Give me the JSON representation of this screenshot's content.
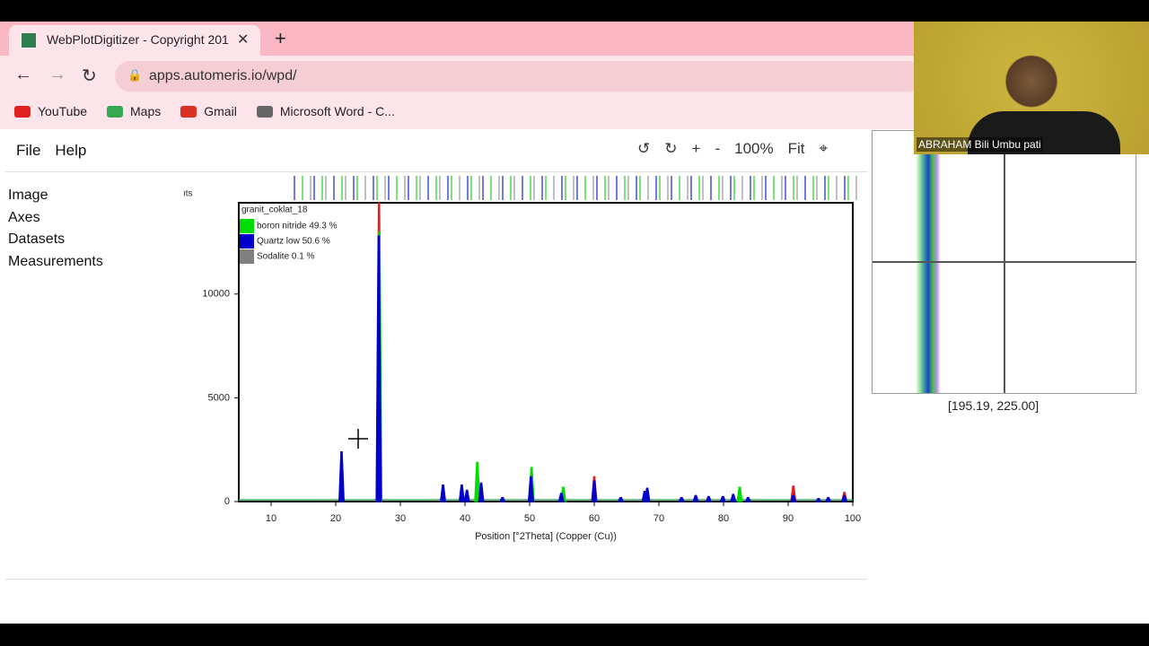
{
  "browser": {
    "tab_title": "WebPlotDigitizer - Copyright 201",
    "url": "apps.automeris.io/wpd/",
    "bookmarks": [
      "YouTube",
      "Maps",
      "Gmail",
      "Microsoft Word - C..."
    ]
  },
  "menu": {
    "items": [
      "File",
      "Help"
    ]
  },
  "toolbar": {
    "buttons": [
      "↺",
      "↻",
      "+",
      "-",
      "100%",
      "Fit",
      "⌖"
    ]
  },
  "sidebar": {
    "items": [
      "Image",
      "Axes",
      "Datasets",
      "Measurements"
    ]
  },
  "plot": {
    "type": "peaks",
    "axis_label_fragment": "ıts",
    "legend_title": "granit_coklat_18",
    "x_label": "Position [°2Theta] (Copper (Cu))",
    "xlim": [
      5,
      100
    ],
    "ylim": [
      0,
      14400
    ],
    "xticks": [
      10,
      20,
      30,
      40,
      50,
      60,
      70,
      80,
      90,
      100
    ],
    "yticks": [
      0,
      5000,
      10000
    ],
    "series": [
      {
        "color": "#e02020",
        "x": [
          26.7,
          60.0,
          90.8,
          98.7
        ],
        "values": [
          14400,
          1200,
          750,
          450
        ]
      },
      {
        "name": "boron nitride 49.3 %",
        "color": "#00dd00",
        "x": [
          26.75,
          41.9,
          50.3,
          55.2,
          82.5
        ],
        "values": [
          13000,
          1900,
          1650,
          700,
          700
        ]
      },
      {
        "name": "Quartz low 50.6 %",
        "color": "#0000cc",
        "x": [
          20.9,
          26.65,
          36.6,
          39.5,
          40.3,
          42.5,
          45.8,
          50.2,
          54.9,
          60.0,
          64.1,
          67.8,
          68.2,
          73.5,
          75.7,
          77.7,
          79.9,
          81.5,
          83.8,
          90.8,
          94.7,
          96.2,
          98.7
        ],
        "values": [
          2400,
          12800,
          800,
          800,
          550,
          900,
          200,
          1200,
          400,
          1000,
          200,
          500,
          650,
          200,
          300,
          250,
          250,
          350,
          200,
          300,
          150,
          200,
          300
        ]
      },
      {
        "name": "Sodalite 0.1 %",
        "color": "#808080"
      }
    ]
  },
  "zoom": {
    "coordinates": "[195.19, 225.00]"
  },
  "webcam": {
    "name": "ABRAHAM Bili Umbu pati"
  }
}
